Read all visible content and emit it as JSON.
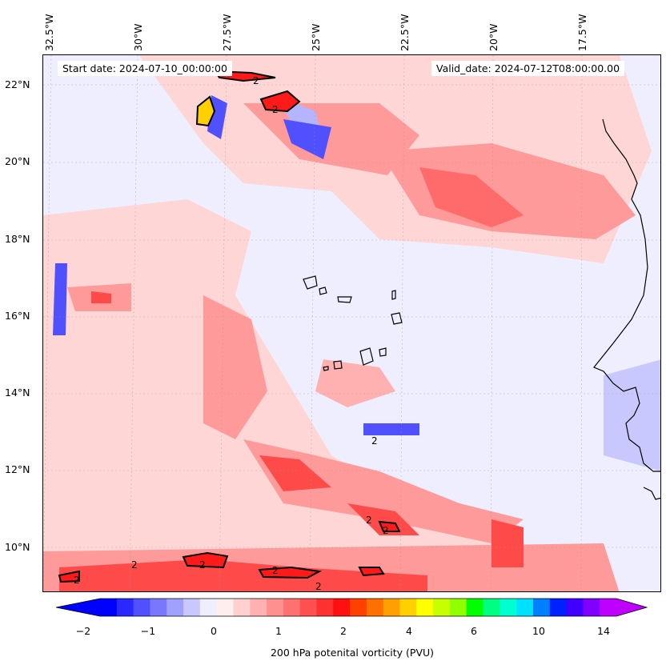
{
  "annotations": {
    "start_date": "Start date: 2024-07-10_00:00:00",
    "valid_date": "Valid_date: 2024-07-12T08:00:00.00"
  },
  "axes": {
    "longitude_labels": [
      "32.5°W",
      "30°W",
      "27.5°W",
      "25°W",
      "22.5°W",
      "20°W",
      "17.5°W"
    ],
    "latitude_labels": [
      "22°N",
      "20°N",
      "18°N",
      "16°N",
      "14°N",
      "12°N",
      "10°N"
    ]
  },
  "colorbar": {
    "title": "200 hPa potenital vorticity (PVU)",
    "tick_labels": [
      "−2",
      "−1",
      "0",
      "1",
      "2",
      "4",
      "6",
      "10",
      "14"
    ],
    "colors": [
      "#0000ff",
      "#2828ff",
      "#5050ff",
      "#7878ff",
      "#a0a0ff",
      "#c8c8ff",
      "#eeeeff",
      "#ffeeee",
      "#ffd0d0",
      "#ffb0b0",
      "#ff9090",
      "#ff7070",
      "#ff5050",
      "#ff3030",
      "#ff1010",
      "#ff4000",
      "#ff7000",
      "#ffa000",
      "#ffcf00",
      "#ffff00",
      "#c8ff00",
      "#90ff00",
      "#00ff00",
      "#00ff80",
      "#00ffd0",
      "#00e0ff",
      "#0080ff",
      "#0020ff",
      "#4000ff",
      "#8000ff",
      "#c000ff"
    ]
  },
  "map": {
    "contour_label": "2",
    "pv_fill_colors": {
      "neg_strong": "#5050ff",
      "neg_weak": "#b4b4ff",
      "bg": "#eeeefe",
      "pos_weak": "#ffd6d6",
      "pos_mid": "#ff9a9a",
      "pos_strong": "#ff4a4a",
      "peak": "#ff1a1a",
      "max": "#ffcf00"
    }
  }
}
